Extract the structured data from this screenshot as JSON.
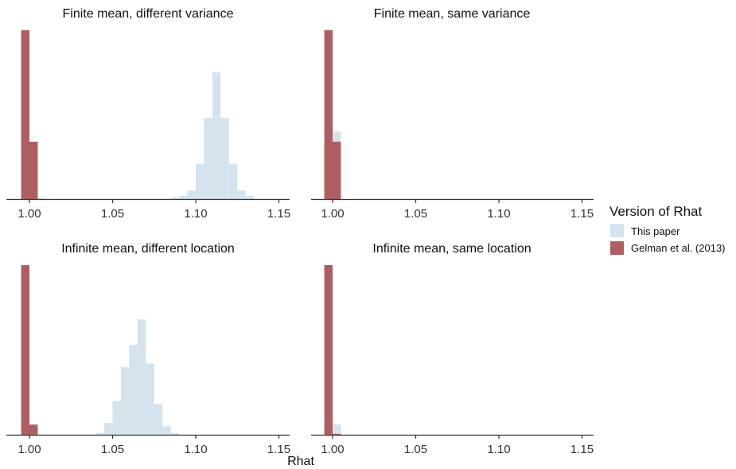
{
  "colors": {
    "this_paper": "#d5e3ee",
    "gelman": "#ae5e61",
    "axis": "#333333"
  },
  "chart_data": {
    "type": "bar",
    "subtype": "faceted-histogram",
    "xlabel": "Rhat",
    "xticks": [
      1.0,
      1.05,
      1.1,
      1.15
    ],
    "xtick_labels": [
      "1.00",
      "1.05",
      "1.10",
      "1.15"
    ],
    "xlim": [
      0.985,
      1.155
    ],
    "legend": {
      "title": "Version of Rhat",
      "placement": "right",
      "entries": [
        {
          "label": "This paper",
          "color": "#d5e3ee"
        },
        {
          "label": "Gelman et al. (2013)",
          "color": "#ae5e61"
        }
      ]
    },
    "panels": [
      {
        "title": "Finite mean, different variance",
        "this_paper": {
          "bins": [
            [
              0.995,
              1.005,
              0.0
            ],
            [
              1.005,
              1.01,
              0.005
            ],
            [
              1.085,
              1.09,
              0.01
            ],
            [
              1.09,
              1.095,
              0.02
            ],
            [
              1.095,
              1.1,
              0.05
            ],
            [
              1.1,
              1.105,
              0.21
            ],
            [
              1.105,
              1.11,
              0.48
            ],
            [
              1.11,
              1.115,
              0.75
            ],
            [
              1.115,
              1.12,
              0.48
            ],
            [
              1.12,
              1.125,
              0.21
            ],
            [
              1.125,
              1.13,
              0.05
            ],
            [
              1.13,
              1.135,
              0.02
            ]
          ]
        },
        "gelman": {
          "bins": [
            [
              0.995,
              1.0,
              1.0
            ],
            [
              1.0,
              1.005,
              0.34
            ]
          ]
        }
      },
      {
        "title": "Finite mean, same variance",
        "this_paper": {
          "bins": [
            [
              0.995,
              1.0,
              1.0
            ],
            [
              1.0,
              1.005,
              0.4
            ]
          ]
        },
        "gelman": {
          "bins": [
            [
              0.995,
              1.0,
              1.0
            ],
            [
              1.0,
              1.005,
              0.34
            ]
          ]
        }
      },
      {
        "title": "Infinite mean, different location",
        "this_paper": {
          "bins": [
            [
              1.04,
              1.045,
              0.01
            ],
            [
              1.045,
              1.05,
              0.07
            ],
            [
              1.05,
              1.055,
              0.2
            ],
            [
              1.055,
              1.06,
              0.4
            ],
            [
              1.06,
              1.065,
              0.53
            ],
            [
              1.065,
              1.07,
              0.68
            ],
            [
              1.07,
              1.075,
              0.42
            ],
            [
              1.075,
              1.08,
              0.18
            ],
            [
              1.08,
              1.085,
              0.05
            ],
            [
              1.085,
              1.09,
              0.01
            ]
          ]
        },
        "gelman": {
          "bins": [
            [
              0.995,
              1.0,
              1.0
            ],
            [
              1.0,
              1.005,
              0.06
            ]
          ]
        }
      },
      {
        "title": "Infinite mean, same location",
        "this_paper": {
          "bins": [
            [
              0.995,
              1.0,
              1.0
            ],
            [
              1.0,
              1.005,
              0.06
            ]
          ]
        },
        "gelman": {
          "bins": [
            [
              0.995,
              1.0,
              1.0
            ],
            [
              1.0,
              1.005,
              0.005
            ]
          ]
        }
      }
    ]
  }
}
